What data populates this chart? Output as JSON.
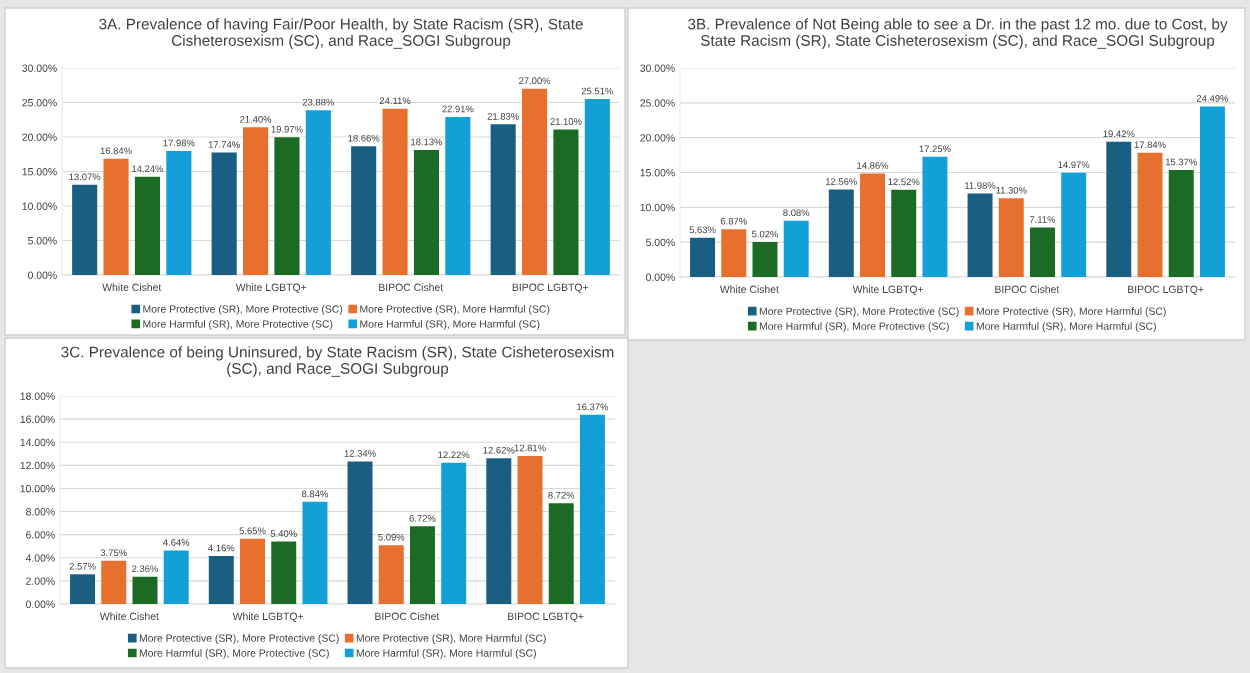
{
  "chart_data": [
    {
      "type": "bar",
      "title": "3A. Prevalence of having Fair/Poor Health, by State Racism (SR), State\nCisheterosexism (SC), and Race_SOGI Subgroup",
      "categories": [
        "White Cishet",
        "White LGBTQ+",
        "BIPOC Cishet",
        "BIPOC LGBTQ+"
      ],
      "series": [
        {
          "name": "More Protective (SR), More Protective (SC)",
          "color": "#1a5e82",
          "values": [
            13.07,
            17.74,
            18.66,
            21.83
          ],
          "value_labels": [
            "13.07%",
            "17.74%",
            "18.66%",
            "21.83%"
          ]
        },
        {
          "name": "More Protective (SR), More Harmful (SC)",
          "color": "#e8702f",
          "values": [
            16.84,
            21.4,
            24.11,
            27.0
          ],
          "value_labels": [
            "16.84%",
            "21.40%",
            "24.11%",
            "27.00%"
          ]
        },
        {
          "name": "More Harmful (SR), More Protective (SC)",
          "color": "#1c6b25",
          "values": [
            14.24,
            19.97,
            18.13,
            21.1
          ],
          "value_labels": [
            "14.24%",
            "19.97%",
            "18.13%",
            "21.10%"
          ]
        },
        {
          "name": "More Harmful (SR), More Harmful (SC)",
          "color": "#12a0d7",
          "values": [
            17.98,
            23.88,
            22.91,
            25.51
          ],
          "value_labels": [
            "17.98%",
            "23.88%",
            "22.91%",
            "25.51%"
          ]
        }
      ],
      "ylim": [
        0,
        30
      ],
      "yticks": [
        {
          "value": 0,
          "label": "0.00%"
        },
        {
          "value": 5,
          "label": "5.00%"
        },
        {
          "value": 10,
          "label": "10.00%"
        },
        {
          "value": 15,
          "label": "15.00%"
        },
        {
          "value": 20,
          "label": "20.00%"
        },
        {
          "value": 25,
          "label": "25.00%"
        },
        {
          "value": 30,
          "label": "30.00%"
        }
      ],
      "grid": "y",
      "legend": "bottom"
    },
    {
      "type": "bar",
      "title": "3B. Prevalence of Not Being able to see a Dr. in the past 12 mo. due to Cost, by\nState Racism (SR), State Cisheterosexism (SC), and Race_SOGI Subgroup",
      "categories": [
        "White Cishet",
        "White LGBTQ+",
        "BIPOC Cishet",
        "BIPOC LGBTQ+"
      ],
      "series": [
        {
          "name": "More Protective (SR), More Protective (SC)",
          "color": "#1a5e82",
          "values": [
            5.63,
            12.56,
            11.98,
            19.42
          ],
          "value_labels": [
            "5.63%",
            "12.56%",
            "11.98%",
            "19.42%"
          ]
        },
        {
          "name": "More Protective (SR), More Harmful (SC)",
          "color": "#e8702f",
          "values": [
            6.87,
            14.86,
            11.3,
            17.84
          ],
          "value_labels": [
            "6.87%",
            "14.86%",
            "11.30%",
            "17.84%"
          ]
        },
        {
          "name": "More Harmful (SR), More Protective (SC)",
          "color": "#1c6b25",
          "values": [
            5.02,
            12.52,
            7.11,
            15.37
          ],
          "value_labels": [
            "5.02%",
            "12.52%",
            "7.11%",
            "15.37%"
          ]
        },
        {
          "name": "More Harmful (SR), More Harmful (SC)",
          "color": "#12a0d7",
          "values": [
            8.08,
            17.25,
            14.97,
            24.49
          ],
          "value_labels": [
            "8.08%",
            "17.25%",
            "14.97%",
            "24.49%"
          ]
        }
      ],
      "ylim": [
        0,
        30
      ],
      "yticks": [
        {
          "value": 0,
          "label": "0.00%"
        },
        {
          "value": 5,
          "label": "5.00%"
        },
        {
          "value": 10,
          "label": "10.00%"
        },
        {
          "value": 15,
          "label": "15.00%"
        },
        {
          "value": 20,
          "label": "20.00%"
        },
        {
          "value": 25,
          "label": "25.00%"
        },
        {
          "value": 30,
          "label": "30.00%"
        }
      ],
      "grid": "y",
      "legend": "bottom"
    },
    {
      "type": "bar",
      "title": "3C. Prevalence of being Uninsured, by State Racism (SR), State Cisheterosexism\n(SC), and Race_SOGI Subgroup",
      "categories": [
        "White Cishet",
        "White LGBTQ+",
        "BIPOC Cishet",
        "BIPOC LGBTQ+"
      ],
      "series": [
        {
          "name": "More Protective (SR), More Protective (SC)",
          "color": "#1a5e82",
          "values": [
            2.57,
            4.16,
            12.34,
            12.62
          ],
          "value_labels": [
            "2.57%",
            "4.16%",
            "12.34%",
            "12.62%"
          ]
        },
        {
          "name": "More Protective (SR), More Harmful (SC)",
          "color": "#e8702f",
          "values": [
            3.75,
            5.65,
            5.09,
            12.81
          ],
          "value_labels": [
            "3.75%",
            "5.65%",
            "5.09%",
            "12.81%"
          ]
        },
        {
          "name": "More Harmful (SR), More Protective (SC)",
          "color": "#1c6b25",
          "values": [
            2.36,
            5.4,
            6.72,
            8.72
          ],
          "value_labels": [
            "2.36%",
            "5.40%",
            "6.72%",
            "8.72%"
          ]
        },
        {
          "name": "More Harmful (SR), More Harmful (SC)",
          "color": "#12a0d7",
          "values": [
            4.64,
            8.84,
            12.22,
            16.37
          ],
          "value_labels": [
            "4.64%",
            "8.84%",
            "12.22%",
            "16.37%"
          ]
        }
      ],
      "ylim": [
        0,
        18
      ],
      "yticks": [
        {
          "value": 0,
          "label": "0.00%"
        },
        {
          "value": 2,
          "label": "2.00%"
        },
        {
          "value": 4,
          "label": "4.00%"
        },
        {
          "value": 6,
          "label": "6.00%"
        },
        {
          "value": 8,
          "label": "8.00%"
        },
        {
          "value": 10,
          "label": "10.00%"
        },
        {
          "value": 12,
          "label": "12.00%"
        },
        {
          "value": 14,
          "label": "14.00%"
        },
        {
          "value": 16,
          "label": "16.00%"
        },
        {
          "value": 18,
          "label": "18.00%"
        }
      ],
      "grid": "y",
      "legend": "bottom"
    }
  ]
}
